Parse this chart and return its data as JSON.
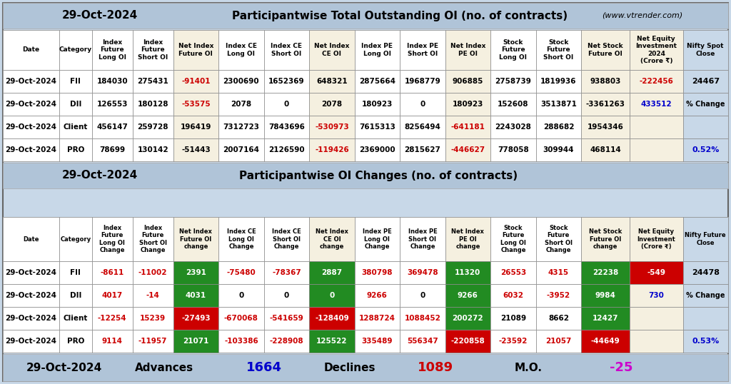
{
  "bg_color": "#c8d8e8",
  "title_bg": "#b0c4d8",
  "header_bg": "#ffffff",
  "header_bg2": "#f5f0e0",
  "data_bg": "#ffffff",
  "net_col_bg": "#f5f0e0",
  "net_equity_bg": "#f5d0a0",
  "red_text": "#cc0000",
  "blue_text": "#0000cc",
  "green_bg": "#228B22",
  "dark_red_bg": "#cc0000",
  "section1_title": "Participantwise Total Outstanding OI (no. of contracts)",
  "section2_title": "Participantwise OI Changes (no. of contracts)",
  "website": "(www.vtrender.com)",
  "date_label": "29-Oct-2024",
  "table1_headers": [
    "Date",
    "Category",
    "Index\nFuture\nLong OI",
    "Index\nFuture\nShort OI",
    "Net Index\nFuture OI",
    "Index CE\nLong OI",
    "Index CE\nShort OI",
    "Net Index\nCE OI",
    "Index PE\nLong OI",
    "Index PE\nShort OI",
    "Net Index\nPE OI",
    "Stock\nFuture\nLong OI",
    "Stock\nFuture\nShort OI",
    "Net Stock\nFuture OI",
    "Net Equity\nInvestment\n2024\n(Crore ₹)",
    "Nifty Spot\nClose"
  ],
  "table1_data": [
    [
      "29-Oct-2024",
      "FII",
      "184030",
      "275431",
      "-91401",
      "2300690",
      "1652369",
      "648321",
      "2875664",
      "1968779",
      "906885",
      "2758739",
      "1819936",
      "938803",
      "-222456",
      "24467"
    ],
    [
      "29-Oct-2024",
      "DII",
      "126553",
      "180128",
      "-53575",
      "2078",
      "0",
      "2078",
      "180923",
      "0",
      "180923",
      "152608",
      "3513871",
      "-3361263",
      "433512",
      ""
    ],
    [
      "29-Oct-2024",
      "Client",
      "456147",
      "259728",
      "196419",
      "7312723",
      "7843696",
      "-530973",
      "7615313",
      "8256494",
      "-641181",
      "2243028",
      "288682",
      "1954346",
      "",
      ""
    ],
    [
      "29-Oct-2024",
      "PRO",
      "78699",
      "130142",
      "-51443",
      "2007164",
      "2126590",
      "-119426",
      "2369000",
      "2815627",
      "-446627",
      "778058",
      "309944",
      "468114",
      "",
      ""
    ]
  ],
  "table1_net_cols": [
    4,
    7,
    10,
    13,
    14
  ],
  "table1_red_vals": [
    "-91401",
    "-53575",
    "-530973",
    "-119426",
    "-641181",
    "-446627",
    "-222456"
  ],
  "table1_blue_vals": [
    "433512"
  ],
  "table1_pct_change": "0.52%",
  "table2_headers": [
    "Date",
    "Category",
    "Index\nFuture\nLong OI\nChange",
    "Index\nFuture\nShort OI\nChange",
    "Net Index\nFuture OI\nchange",
    "Index CE\nLong OI\nChange",
    "Index CE\nShort OI\nChange",
    "Net Index\nCE OI\nchange",
    "Index PE\nLong OI\nChange",
    "Index PE\nShort OI\nChange",
    "Net Index\nPE OI\nchange",
    "Stock\nFuture\nLong OI\nChange",
    "Stock\nFuture\nShort OI\nChange",
    "Net Stock\nFuture OI\nchange",
    "Net Equity\nInvestment\n(Crore ₹)",
    "Nifty Future\nClose"
  ],
  "table2_data": [
    [
      "29-Oct-2024",
      "FII",
      "-8611",
      "-11002",
      "2391",
      "-75480",
      "-78367",
      "2887",
      "380798",
      "369478",
      "11320",
      "26553",
      "4315",
      "22238",
      "-549",
      "24478"
    ],
    [
      "29-Oct-2024",
      "DII",
      "4017",
      "-14",
      "4031",
      "0",
      "0",
      "0",
      "9266",
      "0",
      "9266",
      "6032",
      "-3952",
      "9984",
      "730",
      ""
    ],
    [
      "29-Oct-2024",
      "Client",
      "-12254",
      "15239",
      "-27493",
      "-670068",
      "-541659",
      "-128409",
      "1288724",
      "1088452",
      "200272",
      "21089",
      "8662",
      "12427",
      "",
      ""
    ],
    [
      "29-Oct-2024",
      "PRO",
      "9114",
      "-11957",
      "21071",
      "-103386",
      "-228908",
      "125522",
      "335489",
      "556347",
      "-220858",
      "-23592",
      "21057",
      "-44649",
      "",
      ""
    ]
  ],
  "table2_net_cols": [
    4,
    7,
    10,
    13,
    14
  ],
  "table2_green_vals": [
    "2391",
    "4031",
    "2887",
    "0",
    "11320",
    "9266",
    "200272",
    "22238",
    "9984",
    "12427",
    "21071",
    "125522"
  ],
  "table2_red_vals": [
    "-27493",
    "-128409",
    "-220858",
    "-44649",
    "-549"
  ],
  "table2_red_text_vals": [
    "-8611",
    "-11002",
    "-75480",
    "-78367",
    "4017",
    "-14",
    "-12254",
    "15239",
    "-670068",
    "-541659",
    "1288724",
    "1088452",
    "9114",
    "-11957",
    "-103386",
    "-228908",
    "335489",
    "556347",
    "26553",
    "4315",
    "6032",
    "-3952",
    "-23592",
    "21057",
    "380798",
    "369478",
    "9266",
    "730"
  ],
  "table2_pct_change": "0.53%",
  "footer_date": "29-Oct-2024",
  "footer_advances": "1664",
  "footer_declines": "1089",
  "footer_mo": "-25"
}
